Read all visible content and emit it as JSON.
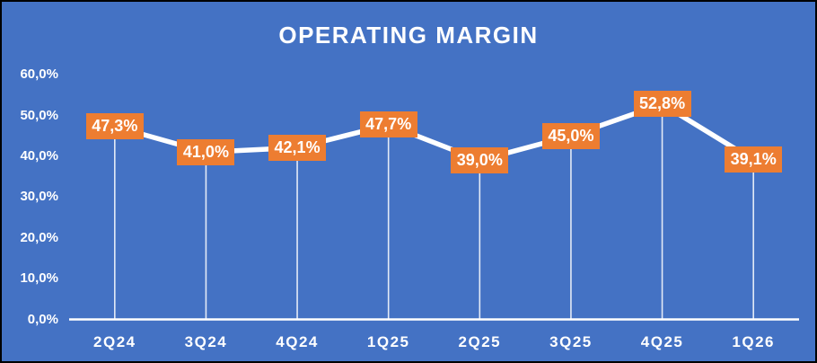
{
  "chart_data": {
    "type": "line",
    "title": "OPERATING MARGIN",
    "categories": [
      "2Q24",
      "3Q24",
      "4Q24",
      "1Q25",
      "2Q25",
      "3Q25",
      "4Q25",
      "1Q26"
    ],
    "values": [
      47.3,
      41.0,
      42.1,
      47.7,
      39.0,
      45.0,
      52.8,
      39.1
    ],
    "value_labels": [
      "47,3%",
      "41,0%",
      "42,1%",
      "47,7%",
      "39,0%",
      "45,0%",
      "52,8%",
      "39,1%"
    ],
    "y_ticks": [
      {
        "label": "60,0%",
        "value": 60
      },
      {
        "label": "50,0%",
        "value": 50
      },
      {
        "label": "40,0%",
        "value": 40
      },
      {
        "label": "30,0%",
        "value": 30
      },
      {
        "label": "20,0%",
        "value": 20
      },
      {
        "label": "10,0%",
        "value": 10
      },
      {
        "label": "0,0%",
        "value": 0
      }
    ],
    "ylim": [
      0,
      60
    ],
    "xlabel": "",
    "ylabel": "",
    "grid": "off",
    "legend": "none",
    "colors": {
      "background": "#4472C4",
      "series_line": "#FFFFFF",
      "drop_line": "#FFFFFF",
      "axis_line": "#FFFFFF",
      "label_box": "#ED7D31",
      "label_text": "#FFFFFF",
      "axis_text": "#FFFFFF",
      "title_text": "#FFFFFF",
      "border": "#000000"
    }
  }
}
